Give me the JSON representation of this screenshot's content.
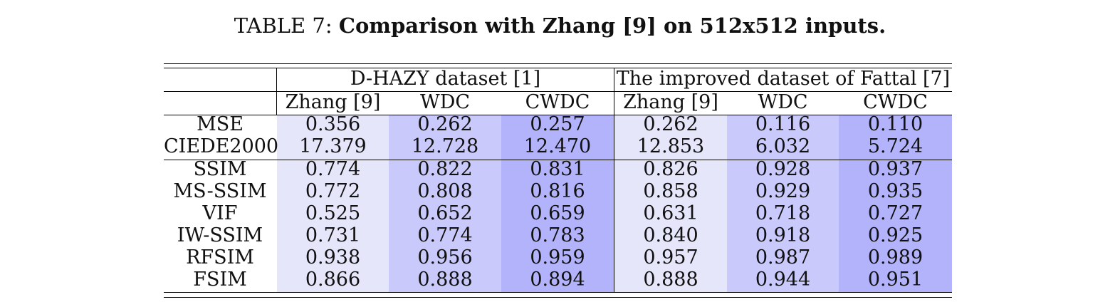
{
  "caption": {
    "label": "TABLE 7:",
    "title": "Comparison with Zhang [9] on 512x512 inputs."
  },
  "header": {
    "groups": [
      "D-HAZY dataset [1]",
      "The improved dataset of Fattal [7]"
    ],
    "methods": [
      "Zhang [9]",
      "WDC",
      "CWDC",
      "Zhang [9]",
      "WDC",
      "CWDC"
    ]
  },
  "rows": [
    {
      "metric": "MSE",
      "values": [
        "0.356",
        "0.262",
        "0.257",
        "0.262",
        "0.116",
        "0.110"
      ]
    },
    {
      "metric": "CIEDE2000",
      "values": [
        "17.379",
        "12.728",
        "12.470",
        "12.853",
        "6.032",
        "5.724"
      ]
    },
    {
      "metric": "SSIM",
      "values": [
        "0.774",
        "0.822",
        "0.831",
        "0.826",
        "0.928",
        "0.937"
      ]
    },
    {
      "metric": "MS-SSIM",
      "values": [
        "0.772",
        "0.808",
        "0.816",
        "0.858",
        "0.929",
        "0.935"
      ]
    },
    {
      "metric": "VIF",
      "values": [
        "0.525",
        "0.652",
        "0.659",
        "0.631",
        "0.718",
        "0.727"
      ]
    },
    {
      "metric": "IW-SSIM",
      "values": [
        "0.731",
        "0.774",
        "0.783",
        "0.840",
        "0.918",
        "0.925"
      ]
    },
    {
      "metric": "RFSIM",
      "values": [
        "0.938",
        "0.956",
        "0.959",
        "0.957",
        "0.987",
        "0.989"
      ]
    },
    {
      "metric": "FSIM",
      "values": [
        "0.866",
        "0.888",
        "0.894",
        "0.888",
        "0.944",
        "0.951"
      ]
    }
  ],
  "colors": {
    "method_1_bg": "#e6e6fb",
    "method_2_bg": "#c9c9fb",
    "method_3_bg": "#b3b3fb",
    "rule": "#000000"
  }
}
